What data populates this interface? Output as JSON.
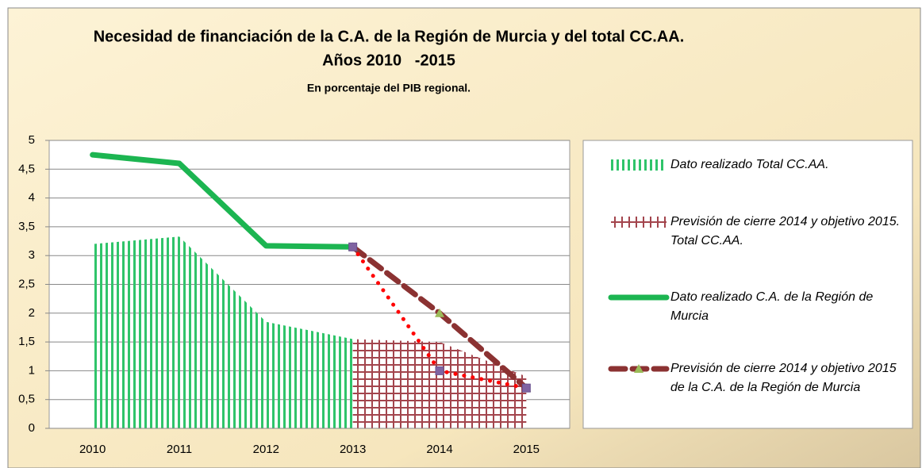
{
  "chart_data": {
    "type": "combo",
    "title": "Necesidad de financiación de la C.A. de la Región de Murcia y del total CC.AA.",
    "title_line2": "Años 2010   -2015",
    "subtitle": "En porcentaje del PIB regional.",
    "categories": [
      "2010",
      "2011",
      "2012",
      "2013",
      "2014",
      "2015"
    ],
    "ylim": [
      0,
      5
    ],
    "yticks": [
      0,
      {
        "value": 0.5,
        "label": "0,5"
      },
      1,
      {
        "value": 1.5,
        "label": "1,5"
      },
      2,
      {
        "value": 2.5,
        "label": "2,5"
      },
      3,
      {
        "value": 3.5,
        "label": "3,5"
      },
      4,
      {
        "value": 4.5,
        "label": "4,5"
      },
      5
    ],
    "grid": true,
    "legend": "right",
    "series": [
      {
        "name": "Dato realizado Total CC.AA.",
        "type": "area",
        "pattern": "vertical",
        "color": "#2fc46a",
        "values": [
          3.2,
          3.33,
          1.85,
          1.55,
          null,
          null
        ]
      },
      {
        "name": "Previsión de cierre 2014 y objetivo 2015. Total CC.AA.",
        "type": "area",
        "pattern": "cross",
        "color": "#a3454d",
        "values": [
          null,
          null,
          null,
          1.55,
          1.5,
          0.9
        ]
      },
      {
        "name": "Dato realizado C.A. de la Región de Murcia",
        "type": "line",
        "dash": "solid",
        "color": "#1cb551",
        "values": [
          4.75,
          4.6,
          3.17,
          3.15,
          null,
          null
        ]
      },
      {
        "name": "Previsión de cierre 2014 y objetivo 2015 de la C.A. de la Región de Murcia",
        "type": "line",
        "dash": "dashed",
        "marker": "triangle",
        "color": "#8b3232",
        "values": [
          null,
          null,
          null,
          3.15,
          2.0,
          0.7
        ]
      },
      {
        "type": "line",
        "dash": "dotted",
        "marker": "square",
        "color": "#ff0000",
        "values": [
          null,
          null,
          null,
          3.15,
          1.0,
          0.7
        ]
      }
    ]
  }
}
